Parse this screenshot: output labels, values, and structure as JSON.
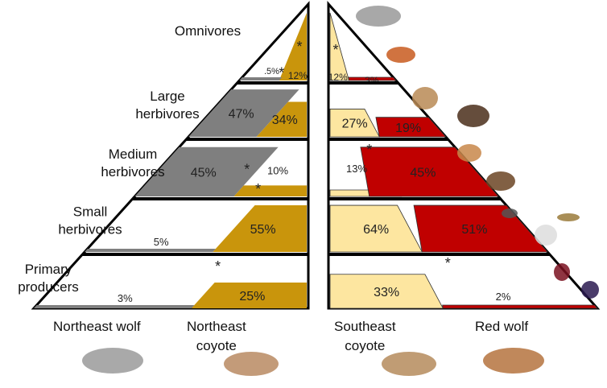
{
  "tiers": [
    {
      "label_lines": [
        "Omnivores"
      ]
    },
    {
      "label_lines": [
        "Large",
        "herbivores"
      ]
    },
    {
      "label_lines": [
        "Medium",
        "herbivores"
      ]
    },
    {
      "label_lines": [
        "Small",
        "herbivores"
      ]
    },
    {
      "label_lines": [
        "Primary",
        "producers"
      ]
    }
  ],
  "left_pyramid": {
    "series": [
      {
        "label": "Northeast wolf",
        "color": "#7f7f7f",
        "values": [
          ".5%",
          "47%",
          "45%",
          "5%",
          "3%"
        ],
        "asterisk": [
          false,
          false,
          false,
          false,
          false
        ]
      },
      {
        "label": "Northeast coyote",
        "color": "#c9950c",
        "values": [
          "12%",
          "34%",
          "10%",
          "55%",
          "25%"
        ],
        "asterisk": [
          true,
          true,
          true,
          true,
          true
        ]
      }
    ]
  },
  "right_pyramid": {
    "series": [
      {
        "label": "Southeast coyote",
        "color": "#fde6a0",
        "values": [
          "12%",
          "27%",
          "13%",
          "64%",
          "33%"
        ],
        "asterisk": [
          true,
          false,
          true,
          false,
          true
        ]
      },
      {
        "label": "Red wolf",
        "color": "#c00000",
        "values": [
          "3%",
          "19%",
          "45%",
          "51%",
          "2%"
        ],
        "asterisk": [
          false,
          false,
          false,
          false,
          false
        ]
      }
    ]
  },
  "bottom_labels": {
    "ne_wolf": "Northeast wolf",
    "ne_coyote": [
      "Northeast",
      "coyote"
    ],
    "se_coyote": [
      "Southeast",
      "coyote"
    ],
    "red_wolf": "Red wolf"
  },
  "asterisk": "*",
  "animal_icons": [
    "raccoon-icon",
    "robin-icon",
    "deer-icon",
    "moose-icon",
    "fawn-icon",
    "beaver-icon",
    "mouse-icon",
    "grasshopper-icon",
    "rabbit-icon",
    "plum-icon",
    "blackberry-icon",
    "gray-wolf-icon",
    "ne-coyote-icon",
    "se-coyote-icon",
    "red-wolf-icon"
  ]
}
